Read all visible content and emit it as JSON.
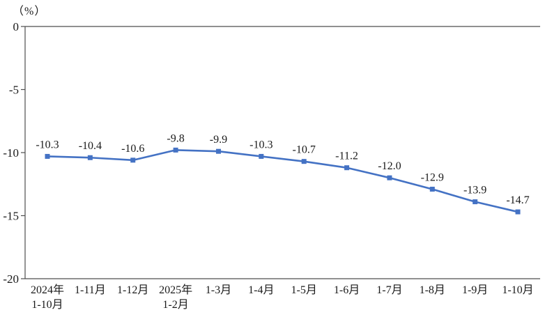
{
  "chart_data": {
    "type": "line",
    "title": "",
    "unit_label": "（%）",
    "categories": [
      "2024年\n1-10月",
      "1-11月",
      "1-12月",
      "2025年\n1-2月",
      "1-3月",
      "1-4月",
      "1-5月",
      "1-6月",
      "1-7月",
      "1-8月",
      "1-9月",
      "1-10月"
    ],
    "values": [
      -10.3,
      -10.4,
      -10.6,
      -9.8,
      -9.9,
      -10.3,
      -10.7,
      -11.2,
      -12.0,
      -12.9,
      -13.9,
      -14.7
    ],
    "data_labels": [
      "-10.3",
      "-10.4",
      "-10.6",
      "-9.8",
      "-9.9",
      "-10.3",
      "-10.7",
      "-11.2",
      "-12.0",
      "-12.9",
      "-13.9",
      "-14.7"
    ],
    "xlabel": "",
    "ylabel": "",
    "ylim": [
      -20,
      0
    ],
    "yticks": [
      0,
      -5,
      -10,
      -15,
      -20
    ],
    "grid": false,
    "legend_position": "none",
    "line_color": "#4472C4",
    "marker": "square",
    "axis_color": "#4d4d4d",
    "text_color": "#1a1a1a"
  }
}
